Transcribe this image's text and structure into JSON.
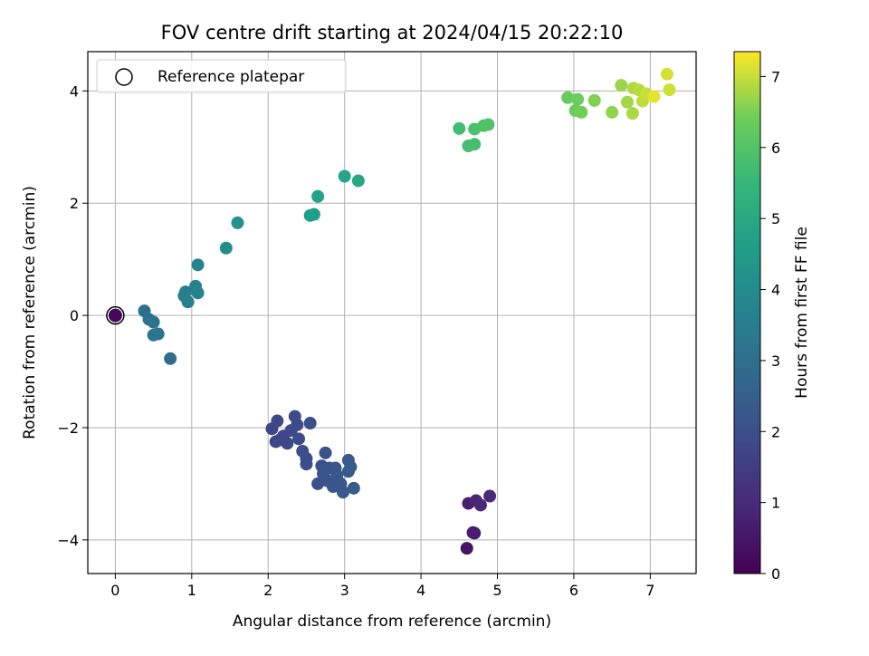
{
  "chart_data": {
    "type": "scatter",
    "title": "FOV centre drift starting at 2024/04/15 20:22:10",
    "xlabel": "Angular distance from reference (arcmin)",
    "ylabel": "Rotation from reference (arcmin)",
    "xlim": [
      -0.36,
      7.6
    ],
    "ylim": [
      -4.6,
      4.7
    ],
    "xticks": [
      0,
      1,
      2,
      3,
      4,
      5,
      6,
      7
    ],
    "yticks": [
      -4,
      -2,
      0,
      2,
      4
    ],
    "xtick_labels": [
      "0",
      "1",
      "2",
      "3",
      "4",
      "5",
      "6",
      "7"
    ],
    "ytick_labels": [
      "−4",
      "−2",
      "0",
      "2",
      "4"
    ],
    "grid": true,
    "legend": {
      "position": "upper-left",
      "entries": [
        "Reference platepar"
      ]
    },
    "reference_point": {
      "x": 0,
      "y": 0,
      "hours": 0.15
    },
    "colorbar": {
      "label": "Hours from first FF file",
      "min": 0,
      "max": 7.35,
      "ticks": [
        0,
        1,
        2,
        3,
        4,
        5,
        6,
        7
      ],
      "tick_labels": [
        "0",
        "1",
        "2",
        "3",
        "4",
        "5",
        "6",
        "7"
      ],
      "colormap": "viridis"
    },
    "points": [
      {
        "x": 4.6,
        "y": -4.15,
        "hours": 0.45
      },
      {
        "x": 4.7,
        "y": -3.88,
        "hours": 0.6
      },
      {
        "x": 4.68,
        "y": -3.87,
        "hours": 0.65
      },
      {
        "x": 4.62,
        "y": -3.35,
        "hours": 0.75
      },
      {
        "x": 4.72,
        "y": -3.3,
        "hours": 0.85
      },
      {
        "x": 4.78,
        "y": -3.38,
        "hours": 0.9
      },
      {
        "x": 4.9,
        "y": -3.22,
        "hours": 1.0
      },
      {
        "x": 2.05,
        "y": -2.02,
        "hours": 1.7
      },
      {
        "x": 2.1,
        "y": -2.25,
        "hours": 1.72
      },
      {
        "x": 2.15,
        "y": -2.22,
        "hours": 1.75
      },
      {
        "x": 2.12,
        "y": -1.88,
        "hours": 1.78
      },
      {
        "x": 2.2,
        "y": -2.15,
        "hours": 1.8
      },
      {
        "x": 2.25,
        "y": -2.28,
        "hours": 1.82
      },
      {
        "x": 2.3,
        "y": -2.05,
        "hours": 1.85
      },
      {
        "x": 2.35,
        "y": -1.8,
        "hours": 1.87
      },
      {
        "x": 2.4,
        "y": -2.2,
        "hours": 1.9
      },
      {
        "x": 2.38,
        "y": -1.95,
        "hours": 1.92
      },
      {
        "x": 2.45,
        "y": -2.42,
        "hours": 1.95
      },
      {
        "x": 2.5,
        "y": -2.65,
        "hours": 1.97
      },
      {
        "x": 2.5,
        "y": -2.55,
        "hours": 2.0
      },
      {
        "x": 2.55,
        "y": -1.92,
        "hours": 2.02
      },
      {
        "x": 2.65,
        "y": -3.0,
        "hours": 2.05
      },
      {
        "x": 2.7,
        "y": -2.68,
        "hours": 2.07
      },
      {
        "x": 2.75,
        "y": -2.45,
        "hours": 2.1
      },
      {
        "x": 2.72,
        "y": -2.82,
        "hours": 2.12
      },
      {
        "x": 2.78,
        "y": -2.95,
        "hours": 2.15
      },
      {
        "x": 2.8,
        "y": -2.72,
        "hours": 2.17
      },
      {
        "x": 2.85,
        "y": -3.05,
        "hours": 2.2
      },
      {
        "x": 2.88,
        "y": -2.72,
        "hours": 2.22
      },
      {
        "x": 2.9,
        "y": -2.85,
        "hours": 2.25
      },
      {
        "x": 2.95,
        "y": -3.0,
        "hours": 2.27
      },
      {
        "x": 2.98,
        "y": -3.15,
        "hours": 2.3
      },
      {
        "x": 3.05,
        "y": -2.58,
        "hours": 2.32
      },
      {
        "x": 3.05,
        "y": -2.78,
        "hours": 2.35
      },
      {
        "x": 3.08,
        "y": -2.7,
        "hours": 2.37
      },
      {
        "x": 3.12,
        "y": -3.08,
        "hours": 2.4
      },
      {
        "x": 0.72,
        "y": -0.77,
        "hours": 2.9
      },
      {
        "x": 0.38,
        "y": 0.08,
        "hours": 3.05
      },
      {
        "x": 0.44,
        "y": -0.07,
        "hours": 3.1
      },
      {
        "x": 0.5,
        "y": -0.12,
        "hours": 3.15
      },
      {
        "x": 0.5,
        "y": -0.35,
        "hours": 3.2
      },
      {
        "x": 0.56,
        "y": -0.33,
        "hours": 3.25
      },
      {
        "x": 0.9,
        "y": 0.35,
        "hours": 3.5
      },
      {
        "x": 0.92,
        "y": 0.42,
        "hours": 3.55
      },
      {
        "x": 0.95,
        "y": 0.24,
        "hours": 3.6
      },
      {
        "x": 1.05,
        "y": 0.52,
        "hours": 3.65
      },
      {
        "x": 1.08,
        "y": 0.4,
        "hours": 3.7
      },
      {
        "x": 1.08,
        "y": 0.9,
        "hours": 3.75
      },
      {
        "x": 1.45,
        "y": 1.2,
        "hours": 4.0
      },
      {
        "x": 1.6,
        "y": 1.65,
        "hours": 4.2
      },
      {
        "x": 2.55,
        "y": 1.78,
        "hours": 4.6
      },
      {
        "x": 2.6,
        "y": 1.8,
        "hours": 4.65
      },
      {
        "x": 2.65,
        "y": 2.12,
        "hours": 4.75
      },
      {
        "x": 3.0,
        "y": 2.48,
        "hours": 4.85
      },
      {
        "x": 3.18,
        "y": 2.4,
        "hours": 4.95
      },
      {
        "x": 4.5,
        "y": 3.33,
        "hours": 5.7
      },
      {
        "x": 4.62,
        "y": 3.02,
        "hours": 5.75
      },
      {
        "x": 4.7,
        "y": 3.05,
        "hours": 5.8
      },
      {
        "x": 4.7,
        "y": 3.32,
        "hours": 5.85
      },
      {
        "x": 4.82,
        "y": 3.38,
        "hours": 5.9
      },
      {
        "x": 4.88,
        "y": 3.4,
        "hours": 5.95
      },
      {
        "x": 5.92,
        "y": 3.88,
        "hours": 6.3
      },
      {
        "x": 6.02,
        "y": 3.65,
        "hours": 6.35
      },
      {
        "x": 6.05,
        "y": 3.85,
        "hours": 6.4
      },
      {
        "x": 6.1,
        "y": 3.62,
        "hours": 6.45
      },
      {
        "x": 6.27,
        "y": 3.83,
        "hours": 6.55
      },
      {
        "x": 6.5,
        "y": 3.62,
        "hours": 6.65
      },
      {
        "x": 6.62,
        "y": 4.1,
        "hours": 6.72
      },
      {
        "x": 6.7,
        "y": 3.8,
        "hours": 6.78
      },
      {
        "x": 6.77,
        "y": 3.6,
        "hours": 6.82
      },
      {
        "x": 6.78,
        "y": 4.05,
        "hours": 6.86
      },
      {
        "x": 6.85,
        "y": 4.02,
        "hours": 6.9
      },
      {
        "x": 6.9,
        "y": 3.82,
        "hours": 6.95
      },
      {
        "x": 6.95,
        "y": 3.95,
        "hours": 7.02
      },
      {
        "x": 7.05,
        "y": 3.9,
        "hours": 7.2
      },
      {
        "x": 7.22,
        "y": 4.3,
        "hours": 7.1
      },
      {
        "x": 7.25,
        "y": 4.02,
        "hours": 7.05
      }
    ]
  }
}
